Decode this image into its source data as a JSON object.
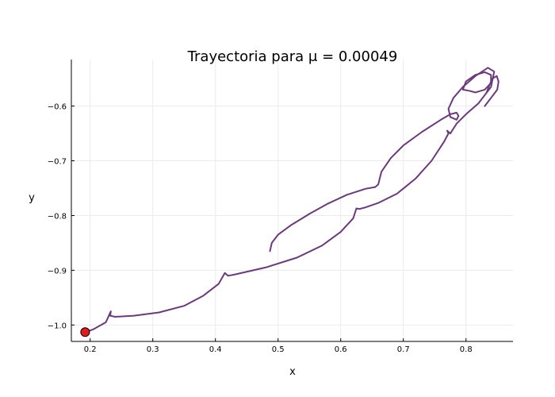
{
  "chart_data": {
    "type": "line",
    "title": "Trayectoria para μ = 0.00049",
    "xlabel": "x",
    "ylabel": "y",
    "xlim": [
      0.17,
      0.875
    ],
    "ylim": [
      -1.03,
      -0.515
    ],
    "xticks": [
      0.2,
      0.3,
      0.4,
      0.5,
      0.6,
      0.7,
      0.8
    ],
    "xtick_labels": [
      "0.2",
      "0.3",
      "0.4",
      "0.5",
      "0.6",
      "0.7",
      "0.8"
    ],
    "yticks": [
      -0.6,
      -0.7,
      -0.8,
      -0.9,
      -1.0
    ],
    "ytick_labels": [
      "−0.6",
      "−0.7",
      "−0.8",
      "−0.9",
      "−1.0"
    ],
    "grid": true,
    "legend": "none",
    "series": [
      {
        "color": "#6a3a7a",
        "points": [
          [
            0.487,
            -0.865
          ],
          [
            0.49,
            -0.85
          ],
          [
            0.5,
            -0.835
          ],
          [
            0.52,
            -0.818
          ],
          [
            0.55,
            -0.797
          ],
          [
            0.58,
            -0.778
          ],
          [
            0.61,
            -0.762
          ],
          [
            0.64,
            -0.751
          ],
          [
            0.655,
            -0.748
          ],
          [
            0.66,
            -0.743
          ],
          [
            0.665,
            -0.72
          ],
          [
            0.68,
            -0.695
          ],
          [
            0.7,
            -0.672
          ],
          [
            0.73,
            -0.647
          ],
          [
            0.76,
            -0.625
          ],
          [
            0.775,
            -0.615
          ],
          [
            0.785,
            -0.612
          ],
          [
            0.788,
            -0.618
          ],
          [
            0.785,
            -0.625
          ],
          [
            0.775,
            -0.62
          ],
          [
            0.772,
            -0.605
          ],
          [
            0.78,
            -0.585
          ],
          [
            0.795,
            -0.565
          ],
          [
            0.815,
            -0.545
          ],
          [
            0.835,
            -0.53
          ],
          [
            0.845,
            -0.537
          ],
          [
            0.84,
            -0.565
          ],
          [
            0.82,
            -0.595
          ],
          [
            0.8,
            -0.615
          ],
          [
            0.785,
            -0.632
          ],
          [
            0.775,
            -0.65
          ],
          [
            0.77,
            -0.645
          ],
          [
            0.772,
            -0.65
          ],
          [
            0.765,
            -0.665
          ],
          [
            0.745,
            -0.7
          ],
          [
            0.72,
            -0.732
          ],
          [
            0.69,
            -0.76
          ],
          [
            0.66,
            -0.777
          ],
          [
            0.64,
            -0.785
          ],
          [
            0.63,
            -0.788
          ],
          [
            0.625,
            -0.787
          ],
          [
            0.62,
            -0.805
          ],
          [
            0.6,
            -0.83
          ],
          [
            0.57,
            -0.855
          ],
          [
            0.53,
            -0.877
          ],
          [
            0.48,
            -0.895
          ],
          [
            0.43,
            -0.908
          ],
          [
            0.42,
            -0.91
          ],
          [
            0.415,
            -0.905
          ],
          [
            0.405,
            -0.925
          ],
          [
            0.38,
            -0.947
          ],
          [
            0.35,
            -0.965
          ],
          [
            0.31,
            -0.977
          ],
          [
            0.27,
            -0.983
          ],
          [
            0.24,
            -0.985
          ],
          [
            0.232,
            -0.983
          ],
          [
            0.233,
            -0.975
          ],
          [
            0.225,
            -0.995
          ],
          [
            0.205,
            -1.008
          ],
          [
            0.192,
            -1.013
          ]
        ]
      },
      {
        "color": "#6a3a7a",
        "points": [
          [
            0.795,
            -0.57
          ],
          [
            0.8,
            -0.555
          ],
          [
            0.815,
            -0.543
          ],
          [
            0.83,
            -0.538
          ],
          [
            0.84,
            -0.543
          ],
          [
            0.84,
            -0.558
          ],
          [
            0.83,
            -0.57
          ],
          [
            0.815,
            -0.575
          ],
          [
            0.805,
            -0.572
          ],
          [
            0.795,
            -0.57
          ]
        ]
      },
      {
        "color": "#6a3a7a",
        "points": [
          [
            0.833,
            -0.575
          ],
          [
            0.838,
            -0.56
          ],
          [
            0.842,
            -0.55
          ],
          [
            0.849,
            -0.545
          ],
          [
            0.852,
            -0.555
          ],
          [
            0.85,
            -0.57
          ],
          [
            0.84,
            -0.585
          ],
          [
            0.83,
            -0.6
          ]
        ]
      }
    ],
    "marker": {
      "x": 0.192,
      "y": -1.013,
      "color": "#e41a1c"
    }
  }
}
